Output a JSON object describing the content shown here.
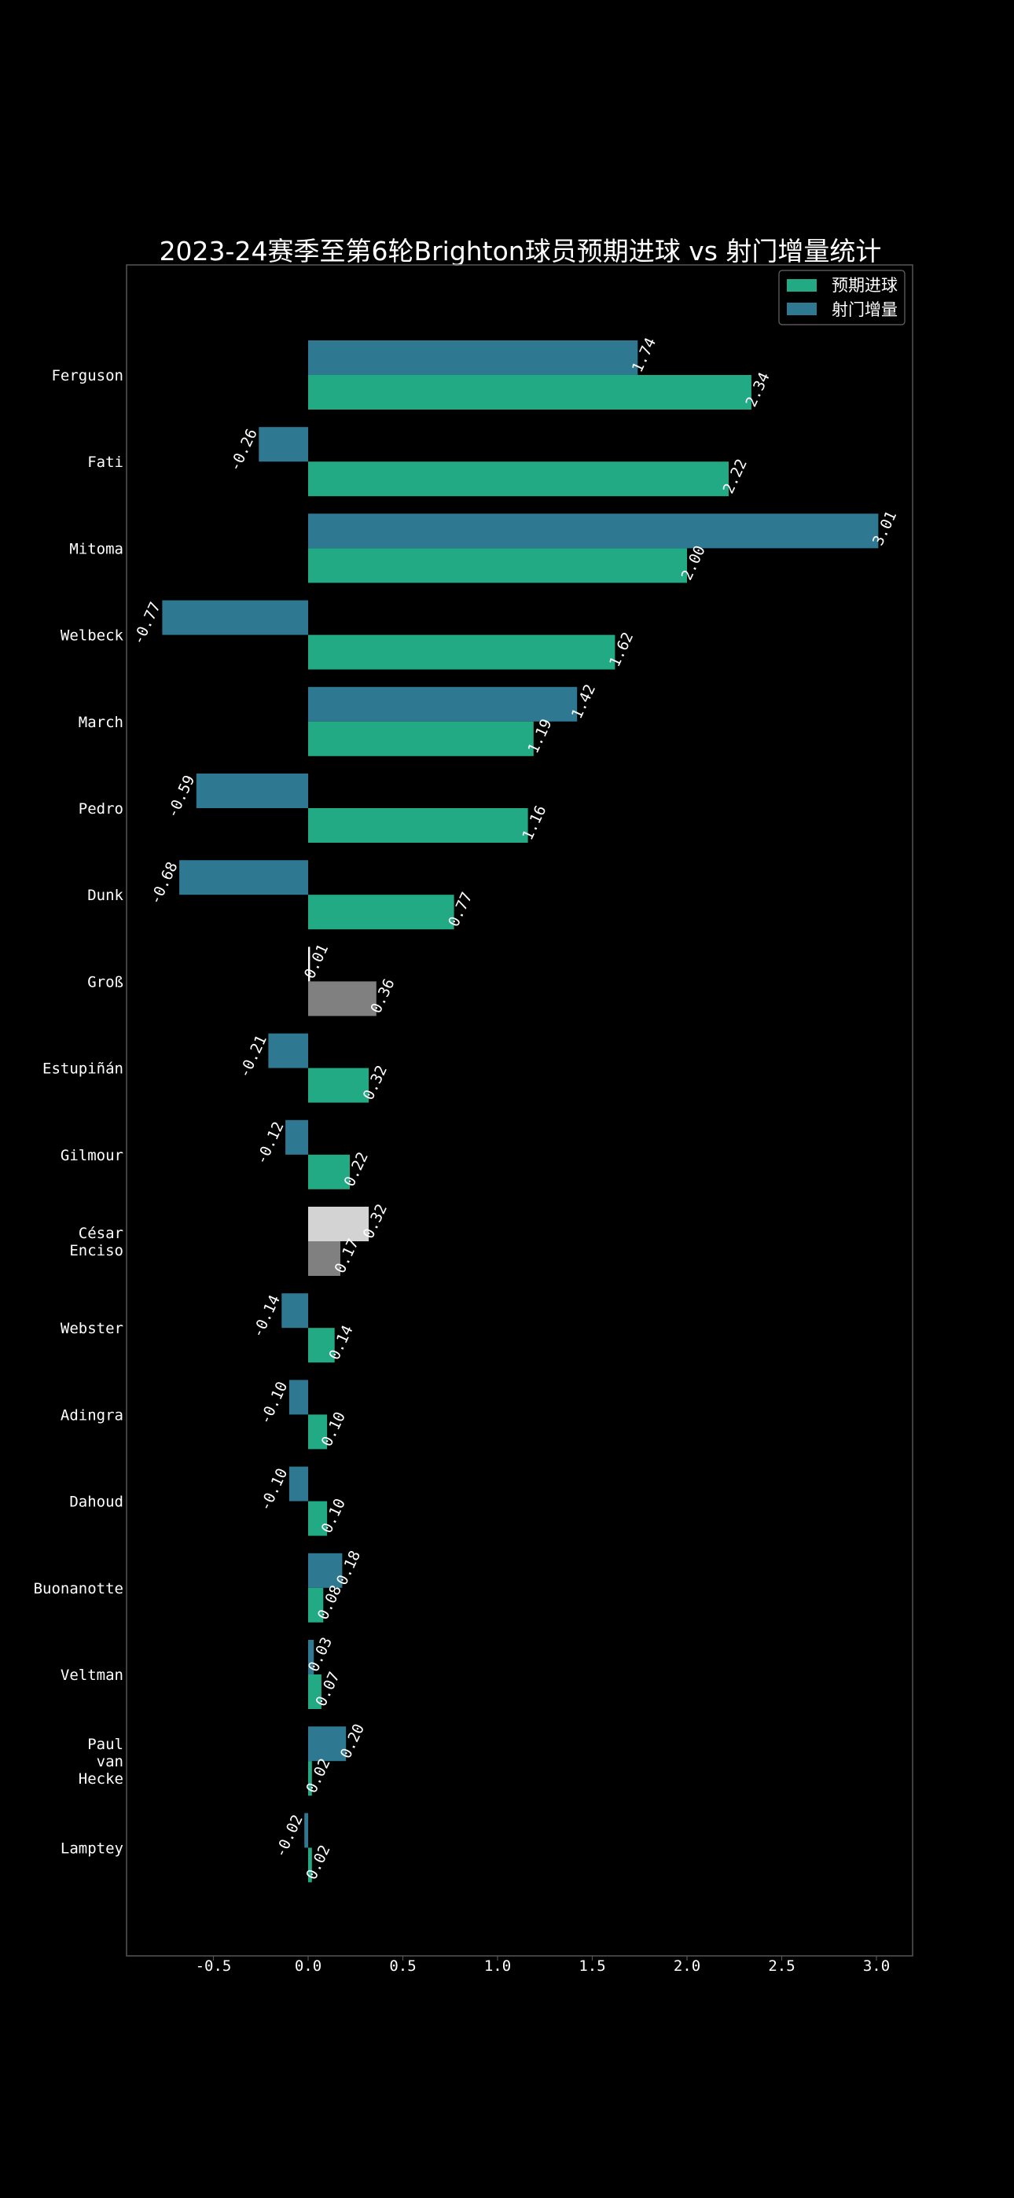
{
  "chart_data": {
    "type": "bar",
    "orientation": "horizontal",
    "title": "2023-24赛季至第6轮Brighton球员预期进球 vs 射门增量统计",
    "xlabel": "",
    "ylabel": "",
    "xlim": [
      -0.96,
      3.2
    ],
    "x_ticks": [
      "-0.5",
      "0.0",
      "0.5",
      "1.0",
      "1.5",
      "2.0",
      "2.5",
      "3.0"
    ],
    "x_tick_values": [
      -0.5,
      0.0,
      0.5,
      1.0,
      1.5,
      2.0,
      2.5,
      3.0
    ],
    "grid": false,
    "legend_position": "top-right",
    "categories": [
      "Ferguson",
      "Fati",
      "Mitoma",
      "Welbeck",
      "March",
      "Pedro",
      "Dunk",
      "Groß",
      "Estupiñán",
      "Gilmour",
      "César Enciso",
      "Webster",
      "Adingra",
      "Dahoud",
      "Buonanotte",
      "Veltman",
      "Paul van Hecke",
      "Lamptey"
    ],
    "category_lines": [
      [
        "Ferguson"
      ],
      [
        "Fati"
      ],
      [
        "Mitoma"
      ],
      [
        "Welbeck"
      ],
      [
        "March"
      ],
      [
        "Pedro"
      ],
      [
        "Dunk"
      ],
      [
        "Groß"
      ],
      [
        "Estupiñán"
      ],
      [
        "Gilmour"
      ],
      [
        "César",
        "Enciso"
      ],
      [
        "Webster"
      ],
      [
        "Adingra"
      ],
      [
        "Dahoud"
      ],
      [
        "Buonanotte"
      ],
      [
        "Veltman"
      ],
      [
        "Paul",
        "van",
        "Hecke"
      ],
      [
        "Lamptey"
      ]
    ],
    "series": [
      {
        "name": "射门增量",
        "color": "#2e7892",
        "values": [
          1.74,
          -0.26,
          3.01,
          -0.77,
          1.42,
          -0.59,
          -0.68,
          0.01,
          -0.21,
          -0.12,
          0.32,
          -0.14,
          -0.1,
          -0.1,
          0.18,
          0.03,
          0.2,
          -0.02
        ],
        "labels": [
          "1.74",
          "-0.26",
          "3.01",
          "-0.77",
          "1.42",
          "-0.59",
          "-0.68",
          "0.01",
          "-0.21",
          "-0.12",
          "0.32",
          "-0.14",
          "-0.10",
          "-0.10",
          "0.18",
          "0.03",
          "0.20",
          "-0.02"
        ],
        "colors": [
          "#2e7892",
          "#2e7892",
          "#2e7892",
          "#2e7892",
          "#2e7892",
          "#2e7892",
          "#2e7892",
          "#ffffff",
          "#2e7892",
          "#2e7892",
          "#d3d3d3",
          "#2e7892",
          "#2e7892",
          "#2e7892",
          "#2e7892",
          "#2e7892",
          "#2e7892",
          "#2e7892"
        ]
      },
      {
        "name": "预期进球",
        "color": "#22aa84",
        "values": [
          2.34,
          2.22,
          2.0,
          1.62,
          1.19,
          1.16,
          0.77,
          0.36,
          0.32,
          0.22,
          0.17,
          0.14,
          0.1,
          0.1,
          0.08,
          0.07,
          0.02,
          0.02
        ],
        "labels": [
          "2.34",
          "2.22",
          "2.00",
          "1.62",
          "1.19",
          "1.16",
          "0.77",
          "0.36",
          "0.32",
          "0.22",
          "0.17",
          "0.14",
          "0.10",
          "0.10",
          "0.08",
          "0.07",
          "0.02",
          "0.02"
        ],
        "colors": [
          "#22aa84",
          "#22aa84",
          "#22aa84",
          "#22aa84",
          "#22aa84",
          "#22aa84",
          "#22aa84",
          "#808080",
          "#22aa84",
          "#22aa84",
          "#808080",
          "#22aa84",
          "#22aa84",
          "#22aa84",
          "#22aa84",
          "#22aa84",
          "#22aa84",
          "#22aa84"
        ]
      }
    ],
    "legend": [
      {
        "name": "预期进球",
        "color": "#22aa84"
      },
      {
        "name": "射门增量",
        "color": "#2e7892"
      }
    ],
    "background_color": "#000000",
    "axes_color": "#555555",
    "text_color": "#ffffff"
  }
}
